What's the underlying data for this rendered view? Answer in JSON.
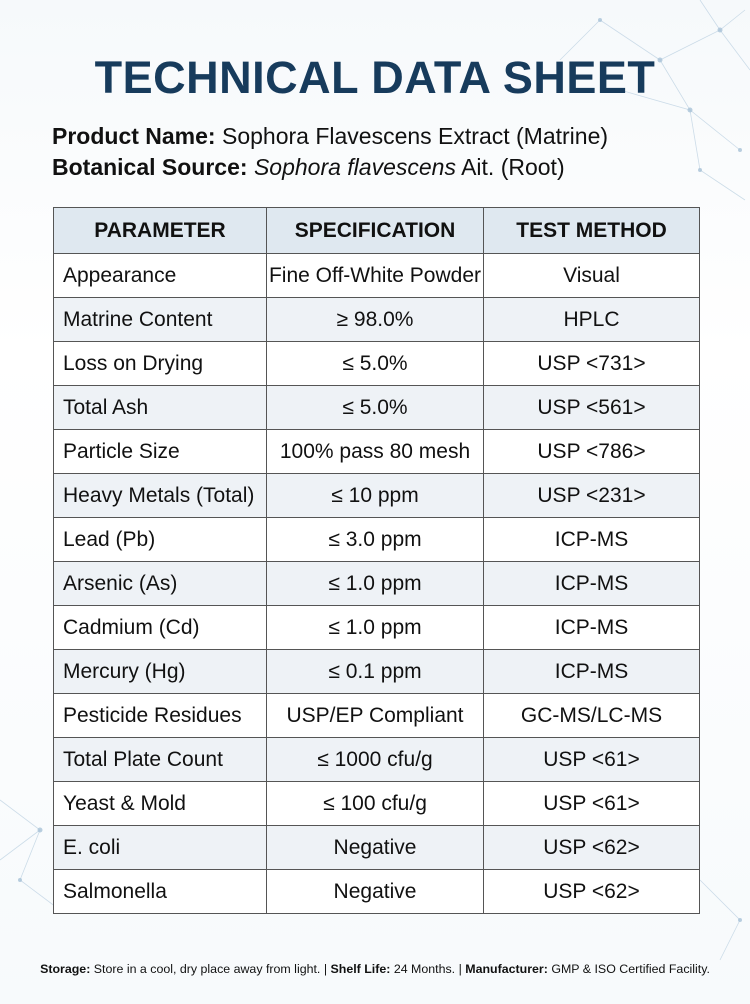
{
  "title": "TECHNICAL DATA SHEET",
  "product": {
    "name_label": "Product Name:",
    "name_value": "Sophora Flavescens Extract (Matrine)",
    "source_label": "Botanical Source:",
    "source_species": "Sophora flavescens",
    "source_rest": "Ait. (Root)"
  },
  "table": {
    "headers": [
      "PARAMETER",
      "SPECIFICATION",
      "TEST METHOD"
    ],
    "rows": [
      [
        "Appearance",
        "Fine Off-White Powder",
        "Visual"
      ],
      [
        "Matrine Content",
        "≥ 98.0%",
        "HPLC"
      ],
      [
        "Loss on Drying",
        "≤ 5.0%",
        "USP <731>"
      ],
      [
        "Total Ash",
        "≤ 5.0%",
        "USP <561>"
      ],
      [
        "Particle Size",
        "100% pass 80 mesh",
        "USP <786>"
      ],
      [
        "Heavy Metals (Total)",
        "≤ 10 ppm",
        "USP <231>"
      ],
      [
        "Lead (Pb)",
        "≤ 3.0 ppm",
        "ICP-MS"
      ],
      [
        "Arsenic (As)",
        "≤ 1.0 ppm",
        "ICP-MS"
      ],
      [
        "Cadmium (Cd)",
        "≤ 1.0 ppm",
        "ICP-MS"
      ],
      [
        "Mercury (Hg)",
        "≤ 0.1 ppm",
        "ICP-MS"
      ],
      [
        "Pesticide Residues",
        "USP/EP Compliant",
        "GC-MS/LC-MS"
      ],
      [
        "Total Plate Count",
        "≤ 1000 cfu/g",
        "USP <61>"
      ],
      [
        "Yeast & Mold",
        "≤ 100 cfu/g",
        "USP <61>"
      ],
      [
        "E. coli",
        "Negative",
        "USP <62>"
      ],
      [
        "Salmonella",
        "Negative",
        "USP <62>"
      ]
    ]
  },
  "footer": {
    "storage_label": "Storage:",
    "storage_value": "Store in a cool, dry place away from light.",
    "shelf_label": "Shelf Life:",
    "shelf_value": "24 Months.",
    "manufacturer_label": "Manufacturer:",
    "manufacturer_value": "GMP & ISO Certified Facility.",
    "separator": "|"
  },
  "colors": {
    "title": "#173b5c",
    "header_bg": "#dfe8f0",
    "alt_row_bg": "#eef2f6",
    "border": "#555555"
  }
}
